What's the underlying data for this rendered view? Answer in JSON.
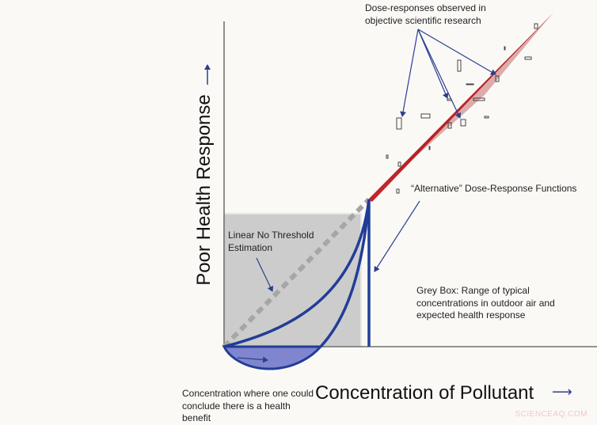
{
  "axes": {
    "y_label": "Poor Health Response",
    "y_arrow": "→",
    "x_label": "Concentration of Pollutant",
    "x_arrow": "⟶"
  },
  "annotations": {
    "observed": "Dose-responses observed in objective scientific research",
    "alternative": "“Alternative” Dose-Response Functions",
    "lnt": "Linear No Threshold Estimation",
    "grey_box": "Grey Box: Range of typical concentrations in outdoor air and expected health response",
    "benefit": "Concentration where one could conclude there is a health benefit"
  },
  "watermark": "SCIENCEAQ.COM",
  "colors": {
    "curve_blue": "#223d96",
    "benefit_fill": "#7f85cf",
    "grey_box": "#cccccc",
    "dashed_line": "#a6a6a6",
    "observed_red": "#c0262b"
  }
}
